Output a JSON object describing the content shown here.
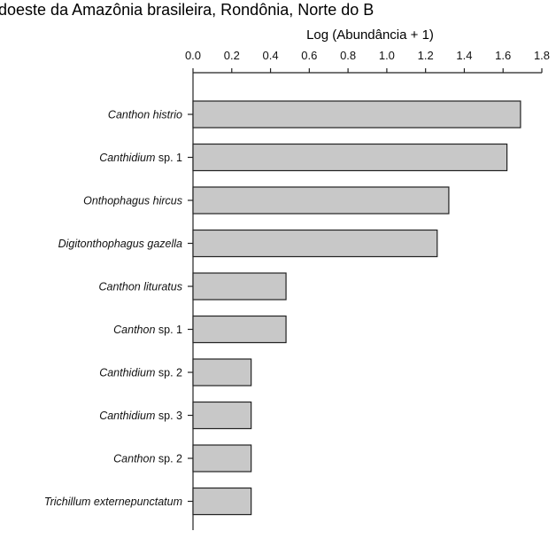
{
  "page_header": {
    "text": "udoeste da Amazônia brasileira, Rondônia, Norte do B"
  },
  "chart_data": {
    "type": "bar",
    "orientation": "horizontal",
    "xlabel": "Log (Abundância + 1)",
    "xlim": [
      0,
      1.8
    ],
    "x_ticks": [
      "0.0",
      "0.2",
      "0.4",
      "0.6",
      "0.8",
      "1.0",
      "1.2",
      "1.4",
      "1.6",
      "1.8"
    ],
    "x_tick_values": [
      0,
      0.2,
      0.4,
      0.6,
      0.8,
      1.0,
      1.2,
      1.4,
      1.6,
      1.8
    ],
    "x_axis_position": "top",
    "grid": false,
    "bar_color": "#c8c8c8",
    "bar_edge_color": "#222222",
    "categories": [
      {
        "italic": "Canthon histrio",
        "rest": ""
      },
      {
        "italic": "Canthidium",
        "rest": " sp. 1"
      },
      {
        "italic": "Onthophagus hircus",
        "rest": ""
      },
      {
        "italic": "Digitonthophagus gazella",
        "rest": ""
      },
      {
        "italic": "Canthon lituratus",
        "rest": ""
      },
      {
        "italic": "Canthon",
        "rest": " sp. 1"
      },
      {
        "italic": "Canthidium",
        "rest": " sp. 2"
      },
      {
        "italic": "Canthidium",
        "rest": " sp. 3"
      },
      {
        "italic": "Canthon",
        "rest": " sp. 2"
      },
      {
        "italic": "Trichillum externepunctatum",
        "rest": ""
      }
    ],
    "values": [
      1.69,
      1.62,
      1.32,
      1.26,
      0.48,
      0.48,
      0.3,
      0.3,
      0.3,
      0.3
    ]
  }
}
